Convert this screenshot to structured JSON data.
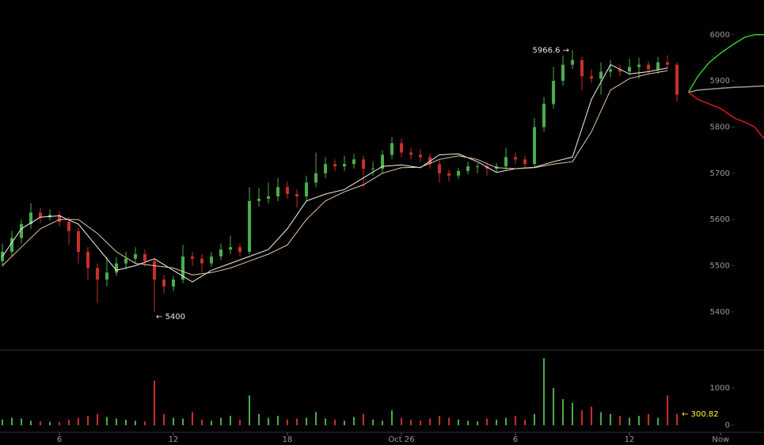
{
  "chart_data": {
    "type": "candlestick",
    "xlim": [
      2.875,
      43.08
    ],
    "ylim": [
      5321,
      6075
    ],
    "yticks": [
      5400,
      5500,
      5600,
      5700,
      5800,
      5900,
      6000
    ],
    "volume_ylim": [
      -170,
      2000
    ],
    "volume_yticks": [
      0,
      1000
    ],
    "xticks": [
      6,
      12,
      18,
      {
        "value": 24,
        "label": "Oct 26"
      },
      {
        "value": 30,
        "label": "6"
      },
      {
        "value": 36,
        "label": "12"
      },
      {
        "value": 40.8,
        "label": "Now"
      }
    ],
    "up_color": "#4cae4c",
    "down_color": "#c9302c",
    "x": [
      3,
      3.5,
      4,
      4.5,
      5,
      5.5,
      6,
      6.5,
      7,
      7.5,
      8,
      8.5,
      9,
      9.5,
      10,
      10.5,
      11,
      11.5,
      12,
      12.5,
      13,
      13.5,
      14,
      14.5,
      15,
      15.5,
      16,
      16.5,
      17,
      17.5,
      18,
      18.5,
      19,
      19.5,
      20,
      20.5,
      21,
      21.5,
      22,
      22.5,
      23,
      23.5,
      24,
      24.5,
      25,
      25.5,
      26,
      26.5,
      27,
      27.5,
      28,
      28.5,
      29,
      29.5,
      30,
      30.5,
      31,
      31.5,
      32,
      32.5,
      33,
      33.5,
      34,
      34.5,
      35,
      35.5,
      36,
      36.5,
      37,
      37.5,
      38,
      38.5
    ],
    "open": [
      5510,
      5530,
      5560,
      5590,
      5615,
      5605,
      5610,
      5595,
      5575,
      5530,
      5495,
      5470,
      5485,
      5505,
      5515,
      5525,
      5510,
      5470,
      5455,
      5470,
      5520,
      5515,
      5505,
      5520,
      5535,
      5540,
      5530,
      5640,
      5645,
      5650,
      5670,
      5655,
      5650,
      5680,
      5700,
      5720,
      5715,
      5720,
      5730,
      5710,
      5710,
      5740,
      5765,
      5745,
      5740,
      5735,
      5720,
      5700,
      5695,
      5705,
      5715,
      5715,
      5710,
      5715,
      5735,
      5730,
      5720,
      5800,
      5850,
      5900,
      5935,
      5945,
      5910,
      5905,
      5920,
      5925,
      5920,
      5930,
      5935,
      5925,
      5940,
      5935
    ],
    "high": [
      5548,
      5575,
      5600,
      5635,
      5625,
      5622,
      5618,
      5605,
      5582,
      5540,
      5505,
      5520,
      5518,
      5530,
      5540,
      5535,
      5515,
      5480,
      5478,
      5545,
      5530,
      5525,
      5530,
      5548,
      5565,
      5548,
      5670,
      5668,
      5680,
      5690,
      5682,
      5665,
      5695,
      5745,
      5735,
      5730,
      5738,
      5742,
      5738,
      5725,
      5750,
      5778,
      5775,
      5755,
      5752,
      5742,
      5728,
      5708,
      5712,
      5725,
      5722,
      5720,
      5722,
      5755,
      5745,
      5738,
      5820,
      5865,
      5930,
      5955,
      5966.6,
      5952,
      5925,
      5940,
      5945,
      5935,
      5948,
      5950,
      5942,
      5952,
      5955,
      5940
    ],
    "low": [
      5498,
      5520,
      5548,
      5580,
      5592,
      5598,
      5585,
      5545,
      5505,
      5470,
      5420,
      5455,
      5478,
      5492,
      5505,
      5498,
      5400,
      5440,
      5445,
      5462,
      5500,
      5485,
      5498,
      5512,
      5525,
      5520,
      5525,
      5628,
      5635,
      5640,
      5645,
      5625,
      5640,
      5670,
      5690,
      5705,
      5705,
      5710,
      5670,
      5695,
      5700,
      5730,
      5735,
      5730,
      5725,
      5710,
      5680,
      5682,
      5688,
      5698,
      5700,
      5695,
      5702,
      5708,
      5720,
      5712,
      5715,
      5790,
      5840,
      5890,
      5925,
      5880,
      5895,
      5870,
      5908,
      5910,
      5912,
      5905,
      5915,
      5915,
      5925,
      5855
    ],
    "close": [
      5530,
      5560,
      5590,
      5615,
      5605,
      5610,
      5595,
      5575,
      5530,
      5495,
      5470,
      5485,
      5505,
      5515,
      5525,
      5510,
      5470,
      5455,
      5470,
      5520,
      5515,
      5505,
      5520,
      5535,
      5540,
      5530,
      5640,
      5645,
      5650,
      5670,
      5655,
      5650,
      5680,
      5700,
      5720,
      5715,
      5720,
      5730,
      5710,
      5710,
      5740,
      5765,
      5745,
      5740,
      5735,
      5720,
      5700,
      5695,
      5705,
      5715,
      5715,
      5710,
      5715,
      5735,
      5730,
      5720,
      5800,
      5850,
      5900,
      5935,
      5945,
      5910,
      5905,
      5920,
      5925,
      5920,
      5930,
      5935,
      5925,
      5940,
      5935,
      5870
    ],
    "volume": [
      150,
      200,
      180,
      120,
      100,
      90,
      80,
      150,
      200,
      250,
      300,
      220,
      180,
      150,
      120,
      100,
      1200,
      300,
      200,
      180,
      350,
      150,
      120,
      200,
      250,
      150,
      800,
      300,
      200,
      250,
      150,
      180,
      200,
      350,
      180,
      150,
      120,
      220,
      300,
      150,
      120,
      400,
      200,
      150,
      120,
      180,
      250,
      200,
      150,
      120,
      100,
      180,
      150,
      200,
      250,
      150,
      300,
      1800,
      1000,
      700,
      600,
      400,
      500,
      350,
      300,
      250,
      200,
      250,
      300,
      200,
      800,
      300.82
    ],
    "series": [
      {
        "color": "#f2f2f2",
        "x": [
          3,
          4,
          5,
          6,
          7,
          8,
          9,
          10,
          11,
          12,
          13,
          14,
          15,
          16,
          17,
          18,
          19,
          20,
          21,
          22,
          23,
          24,
          25,
          26,
          27,
          28,
          29,
          30,
          31,
          32,
          33,
          34,
          35,
          36,
          37,
          38
        ],
        "values": [
          5520,
          5580,
          5605,
          5608,
          5590,
          5540,
          5490,
          5500,
          5515,
          5490,
          5465,
          5490,
          5505,
          5520,
          5535,
          5580,
          5640,
          5655,
          5665,
          5690,
          5715,
          5718,
          5712,
          5740,
          5742,
          5725,
          5702,
          5710,
          5713,
          5725,
          5735,
          5860,
          5935,
          5915,
          5920,
          5928
        ]
      },
      {
        "color": "#e8c9a0",
        "x": [
          3,
          4,
          5,
          6,
          7,
          8,
          9,
          10,
          11,
          12,
          13,
          14,
          15,
          16,
          17,
          18,
          19,
          20,
          21,
          22,
          23,
          24,
          25,
          26,
          27,
          28,
          29,
          30,
          31,
          32,
          33,
          34,
          35,
          36,
          37,
          38
        ],
        "values": [
          5500,
          5540,
          5580,
          5600,
          5600,
          5570,
          5530,
          5505,
          5500,
          5495,
          5480,
          5485,
          5495,
          5510,
          5525,
          5545,
          5600,
          5640,
          5660,
          5675,
          5700,
          5712,
          5713,
          5730,
          5738,
          5730,
          5712,
          5710,
          5712,
          5720,
          5725,
          5790,
          5880,
          5905,
          5915,
          5922
        ]
      },
      {
        "color": "#2ecc2e",
        "x": [
          39.1,
          39.6,
          40.2,
          40.8,
          41.5,
          42.1,
          42.6,
          43.08
        ],
        "values": [
          5875,
          5910,
          5940,
          5960,
          5980,
          5995,
          6000,
          6000
        ]
      },
      {
        "color": "#9a9a9a",
        "x": [
          39.1,
          39.6,
          40.2,
          40.8,
          41.5,
          42.1,
          42.6,
          43.08
        ],
        "values": [
          5875,
          5880,
          5882,
          5884,
          5886,
          5887,
          5888,
          5889
        ]
      },
      {
        "color": "#d01c1c",
        "x": [
          39.1,
          39.6,
          40.2,
          40.8,
          41.5,
          42.1,
          42.6,
          43.08
        ],
        "values": [
          5875,
          5860,
          5850,
          5840,
          5820,
          5810,
          5800,
          5775
        ]
      }
    ],
    "high_label": "5966.6 →",
    "low_label": "← 5400",
    "volume_label": "← 300.82"
  }
}
